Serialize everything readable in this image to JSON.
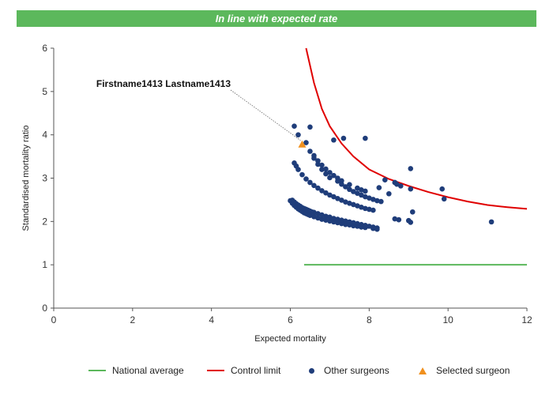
{
  "banner": {
    "text": "In line with expected rate",
    "color": "#5cb85c"
  },
  "chart_data": {
    "type": "scatter",
    "xlabel": "Expected mortality",
    "ylabel": "Standardised mortality ratio",
    "xlim": [
      0,
      12
    ],
    "ylim": [
      0,
      6
    ],
    "xticks": [
      0,
      2,
      4,
      6,
      8,
      10,
      12
    ],
    "yticks": [
      0,
      1,
      2,
      3,
      4,
      5,
      6
    ],
    "grid": false,
    "legend_position": "bottom",
    "series": [
      {
        "name": "National average",
        "kind": "line",
        "color": "#5cb85c",
        "x": [
          6.35,
          12
        ],
        "y": [
          1,
          1
        ]
      },
      {
        "name": "Control limit",
        "kind": "line",
        "color": "#e00000",
        "x": [
          6.4,
          6.6,
          6.8,
          7.0,
          7.3,
          7.6,
          8.0,
          8.5,
          9.0,
          9.5,
          10.0,
          10.5,
          11.0,
          11.5,
          12.0
        ],
        "y": [
          6.0,
          5.2,
          4.6,
          4.2,
          3.8,
          3.5,
          3.2,
          2.98,
          2.82,
          2.68,
          2.56,
          2.46,
          2.38,
          2.33,
          2.29
        ]
      },
      {
        "name": "Other surgeons",
        "kind": "scatter",
        "color": "#1f3d7a",
        "x": [
          6.0,
          6.05,
          6.1,
          6.15,
          6.2,
          6.25,
          6.3,
          6.35,
          6.4,
          6.45,
          6.5,
          6.6,
          6.7,
          6.8,
          6.9,
          7.0,
          7.1,
          7.2,
          7.3,
          7.4,
          7.5,
          7.6,
          7.7,
          7.8,
          7.9,
          6.05,
          6.1,
          6.15,
          6.2,
          6.25,
          6.3,
          6.35,
          6.4,
          6.45,
          6.5,
          6.55,
          6.6,
          6.7,
          6.8,
          6.9,
          7.0,
          7.1,
          7.2,
          7.3,
          7.4,
          7.5,
          7.6,
          7.7,
          7.8,
          7.9,
          8.0,
          8.1,
          8.2,
          6.1,
          6.15,
          6.2,
          6.3,
          6.4,
          6.5,
          6.6,
          6.7,
          6.8,
          6.9,
          7.0,
          7.1,
          7.2,
          7.3,
          7.4,
          7.5,
          7.6,
          7.7,
          7.8,
          7.9,
          8.0,
          8.1,
          6.4,
          6.5,
          6.6,
          6.7,
          6.8,
          6.9,
          7.0,
          7.2,
          7.3,
          7.4,
          7.5,
          7.6,
          7.7,
          7.8,
          7.9,
          8.0,
          8.1,
          8.2,
          8.3,
          6.6,
          6.7,
          6.8,
          6.9,
          7.0,
          7.1,
          7.2,
          7.3,
          7.5,
          7.7,
          7.8,
          7.9,
          6.1,
          6.2,
          6.5,
          7.1,
          7.35,
          7.9,
          8.25,
          8.4,
          8.5,
          8.65,
          8.75,
          9.05,
          9.05,
          8.2,
          8.1,
          8.65,
          8.7,
          8.8,
          9.0,
          9.05,
          9.1,
          9.85,
          9.9,
          11.1
        ],
        "y": [
          2.48,
          2.42,
          2.37,
          2.33,
          2.29,
          2.26,
          2.23,
          2.2,
          2.18,
          2.16,
          2.14,
          2.11,
          2.08,
          2.05,
          2.03,
          2.01,
          1.99,
          1.97,
          1.95,
          1.93,
          1.92,
          1.9,
          1.89,
          1.87,
          1.86,
          2.49,
          2.45,
          2.41,
          2.38,
          2.35,
          2.32,
          2.3,
          2.28,
          2.26,
          2.24,
          2.22,
          2.21,
          2.18,
          2.15,
          2.12,
          2.1,
          2.07,
          2.05,
          2.03,
          2.01,
          1.99,
          1.97,
          1.95,
          1.93,
          1.91,
          1.89,
          1.87,
          1.85,
          3.35,
          3.28,
          3.2,
          3.08,
          2.98,
          2.9,
          2.83,
          2.77,
          2.71,
          2.66,
          2.61,
          2.57,
          2.53,
          2.49,
          2.45,
          2.42,
          2.39,
          2.36,
          2.33,
          2.3,
          2.28,
          2.26,
          3.82,
          3.62,
          3.46,
          3.32,
          3.2,
          3.1,
          3.01,
          2.93,
          2.86,
          2.8,
          2.74,
          2.69,
          2.65,
          2.61,
          2.57,
          2.54,
          2.51,
          2.48,
          2.46,
          3.52,
          3.4,
          3.3,
          3.21,
          3.13,
          3.06,
          3.0,
          2.94,
          2.85,
          2.77,
          2.73,
          2.7,
          4.2,
          4.0,
          4.18,
          3.88,
          3.92,
          3.92,
          2.78,
          2.96,
          2.64,
          2.06,
          2.04,
          3.22,
          2.75,
          1.82,
          1.84,
          2.9,
          2.86,
          2.82,
          2.02,
          1.98,
          2.22,
          2.75,
          2.52,
          1.99
        ]
      },
      {
        "name": "Selected surgeon",
        "kind": "scatter",
        "marker": "triangle",
        "color": "#f0901e",
        "x": [
          6.3
        ],
        "y": [
          3.78
        ]
      }
    ],
    "annotations": [
      {
        "text": "Firstname1413 Lastname1413",
        "x": 6.3,
        "y": 3.78
      }
    ]
  },
  "legend": {
    "items": [
      {
        "label": "National average",
        "symbol": "line",
        "color": "#5cb85c"
      },
      {
        "label": "Control limit",
        "symbol": "line",
        "color": "#e00000"
      },
      {
        "label": "Other surgeons",
        "symbol": "circle",
        "color": "#1f3d7a"
      },
      {
        "label": "Selected surgeon",
        "symbol": "triangle",
        "color": "#f0901e"
      }
    ]
  }
}
